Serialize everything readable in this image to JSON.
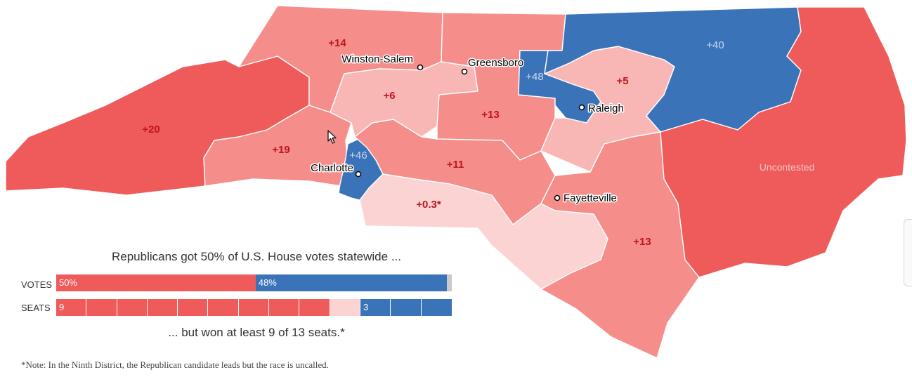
{
  "colors": {
    "strong_rep": "#ef5b5b",
    "medium_rep": "#f58d8a",
    "light_rep": "#f8b7b5",
    "lean_rep": "#fbd3d3",
    "dem": "#3a73b8",
    "other": "#c9c9c9",
    "margin_text_rep": "#c0141c",
    "margin_text_dem": "#c9daf0"
  },
  "districts": [
    {
      "id": "d11",
      "color": "strong_rep",
      "margin": "+20"
    },
    {
      "id": "d10",
      "color": "medium_rep",
      "margin": "+19"
    },
    {
      "id": "d5",
      "color": "medium_rep",
      "margin": "+14"
    },
    {
      "id": "d13",
      "color": "light_rep",
      "margin": "+6"
    },
    {
      "id": "d6",
      "color": "medium_rep",
      "margin": "+13"
    },
    {
      "id": "d12",
      "color": "dem",
      "margin": "+46"
    },
    {
      "id": "d8",
      "color": "medium_rep",
      "margin": "+11"
    },
    {
      "id": "d9",
      "color": "lean_rep",
      "margin": "+0.3*"
    },
    {
      "id": "d4",
      "color": "dem",
      "margin": "+48"
    },
    {
      "id": "d2",
      "color": "light_rep",
      "margin": "+5"
    },
    {
      "id": "d1",
      "color": "dem",
      "margin": "+40"
    },
    {
      "id": "d7",
      "color": "medium_rep",
      "margin": "+13"
    },
    {
      "id": "d3",
      "color": "strong_rep",
      "margin": "Uncontested"
    }
  ],
  "cities": [
    {
      "name": "Winston-Salem"
    },
    {
      "name": "Greensboro"
    },
    {
      "name": "Raleigh"
    },
    {
      "name": "Charlotte"
    },
    {
      "name": "Fayetteville"
    }
  ],
  "summary": {
    "headline": "Republicans got 50% of U.S. House votes statewide ...",
    "votes_label": "VOTES",
    "seats_label": "SEATS",
    "votes": [
      {
        "party": "rep",
        "percent": 50,
        "label": "50%"
      },
      {
        "party": "dem",
        "percent": 48,
        "label": "48%"
      },
      {
        "party": "other",
        "percent": 1.2,
        "label": ""
      }
    ],
    "seats": {
      "total": 13,
      "rep": 9,
      "uncalled": 1,
      "dem": 3,
      "rep_label": "9",
      "dem_label": "3"
    },
    "subline": "... but won at least 9 of 13 seats.*"
  },
  "footnote": "*Note: In the Ninth District, the Republican candidate leads but the race is uncalled."
}
